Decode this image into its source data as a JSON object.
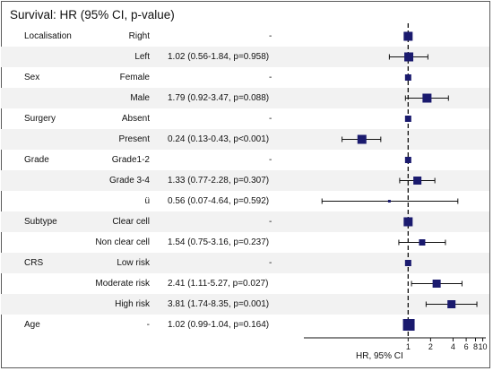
{
  "title": "Survival: HR (95% CI, p-value)",
  "colors": {
    "marker": "#1a1a6e",
    "line": "#111111",
    "frame": "#5a5a5a"
  },
  "rows": [
    {
      "variable": "Localisation",
      "level": "Right",
      "estimate": "-"
    },
    {
      "variable": "",
      "level": "Left",
      "estimate": "1.02 (0.56-1.84, p=0.958)"
    },
    {
      "variable": "Sex",
      "level": "Female",
      "estimate": "-"
    },
    {
      "variable": "",
      "level": "Male",
      "estimate": "1.79 (0.92-3.47, p=0.088)"
    },
    {
      "variable": "Surgery",
      "level": "Absent",
      "estimate": "-"
    },
    {
      "variable": "",
      "level": "Present",
      "estimate": "0.24 (0.13-0.43, p<0.001)"
    },
    {
      "variable": "Grade",
      "level": "Grade1-2",
      "estimate": "-"
    },
    {
      "variable": "",
      "level": "Grade 3-4",
      "estimate": "1.33 (0.77-2.28, p=0.307)"
    },
    {
      "variable": "",
      "level": "ü",
      "estimate": "0.56 (0.07-4.64, p=0.592)"
    },
    {
      "variable": "Subtype",
      "level": "Clear cell",
      "estimate": "-"
    },
    {
      "variable": "",
      "level": "Non clear cell",
      "estimate": "1.54 (0.75-3.16, p=0.237)"
    },
    {
      "variable": "CRS",
      "level": "Low risk",
      "estimate": "-"
    },
    {
      "variable": "",
      "level": "Moderate risk",
      "estimate": "2.41 (1.11-5.27, p=0.027)"
    },
    {
      "variable": "",
      "level": "High risk",
      "estimate": "3.81 (1.74-8.35, p=0.001)"
    },
    {
      "variable": "Age",
      "level": "-",
      "estimate": "1.02 (0.99-1.04, p=0.164)"
    }
  ],
  "chart_data": {
    "type": "forest",
    "title": "Survival: HR (95% CI, p-value)",
    "xlabel": "HR, 95% CI",
    "xscale": "log",
    "xlim": [
      0.04,
      11
    ],
    "reference_line": 1,
    "x_ticks": [
      "1",
      "2",
      "4",
      "6",
      "8",
      "10"
    ],
    "x_tick_values": [
      1,
      2,
      4,
      6,
      8,
      10
    ],
    "points": [
      {
        "level": "Right",
        "hr": 1.0,
        "lower": null,
        "upper": null,
        "weight": "large"
      },
      {
        "level": "Left",
        "hr": 1.02,
        "lower": 0.56,
        "upper": 1.84,
        "weight": "large"
      },
      {
        "level": "Female",
        "hr": 1.0,
        "lower": null,
        "upper": null,
        "weight": "small"
      },
      {
        "level": "Male",
        "hr": 1.79,
        "lower": 0.92,
        "upper": 3.47,
        "weight": "large"
      },
      {
        "level": "Absent",
        "hr": 1.0,
        "lower": null,
        "upper": null,
        "weight": "small"
      },
      {
        "level": "Present",
        "hr": 0.24,
        "lower": 0.13,
        "upper": 0.43,
        "weight": "large"
      },
      {
        "level": "Grade1-2",
        "hr": 1.0,
        "lower": null,
        "upper": null,
        "weight": "small"
      },
      {
        "level": "Grade 3-4",
        "hr": 1.33,
        "lower": 0.77,
        "upper": 2.28,
        "weight": "medium"
      },
      {
        "level": "ü",
        "hr": 0.56,
        "lower": 0.07,
        "upper": 4.64,
        "weight": "tiny"
      },
      {
        "level": "Clear cell",
        "hr": 1.0,
        "lower": null,
        "upper": null,
        "weight": "large"
      },
      {
        "level": "Non clear cell",
        "hr": 1.54,
        "lower": 0.75,
        "upper": 3.16,
        "weight": "small"
      },
      {
        "level": "Low risk",
        "hr": 1.0,
        "lower": null,
        "upper": null,
        "weight": "small"
      },
      {
        "level": "Moderate risk",
        "hr": 2.41,
        "lower": 1.11,
        "upper": 5.27,
        "weight": "medium"
      },
      {
        "level": "High risk",
        "hr": 3.81,
        "lower": 1.74,
        "upper": 8.35,
        "weight": "medium"
      },
      {
        "level": "-",
        "hr": 1.02,
        "lower": 0.99,
        "upper": 1.04,
        "weight": "xlarge"
      }
    ]
  }
}
